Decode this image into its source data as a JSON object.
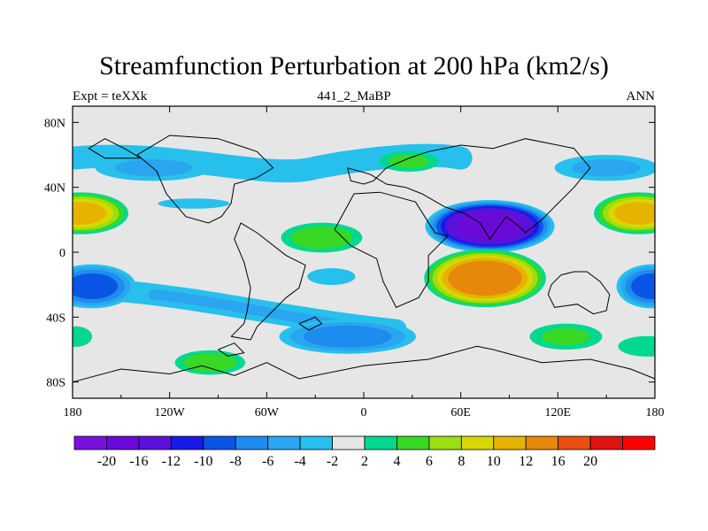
{
  "title": "Streamfunction Perturbation at 200 hPa (km2/s)",
  "left_string": "Expt = teXXk",
  "center_string": "441_2_MaBP",
  "right_string": "ANN",
  "chart_data": {
    "type": "heatmap",
    "variable": "Streamfunction Perturbation at 200 hPa",
    "units": "km2/s",
    "projection": "cylindrical equidistant",
    "lon_range": [
      -180,
      180
    ],
    "lat_range": [
      -90,
      90
    ],
    "x_ticks": [
      {
        "lon": -180,
        "label": "180"
      },
      {
        "lon": -120,
        "label": "120W"
      },
      {
        "lon": -60,
        "label": "60W"
      },
      {
        "lon": 0,
        "label": "0"
      },
      {
        "lon": 60,
        "label": "60E"
      },
      {
        "lon": 120,
        "label": "120E"
      },
      {
        "lon": 180,
        "label": "180"
      }
    ],
    "y_ticks": [
      {
        "lat": 80,
        "label": "80N"
      },
      {
        "lat": 40,
        "label": "40N"
      },
      {
        "lat": 0,
        "label": "0"
      },
      {
        "lat": -40,
        "label": "40S"
      },
      {
        "lat": -80,
        "label": "80S"
      }
    ],
    "colorbar": {
      "colors": [
        "#7a10e0",
        "#6a0ad8",
        "#5a12d8",
        "#1a1ae8",
        "#0a55e6",
        "#1e8cef",
        "#2aa6f0",
        "#27c0ec",
        "#e6e6e6",
        "#00d890",
        "#38d824",
        "#9cde10",
        "#d8d800",
        "#e6b400",
        "#e6880a",
        "#e65012",
        "#e01410",
        "#ff0000"
      ],
      "labels": [
        "-20",
        "-16",
        "-12",
        "-10",
        "-8",
        "-6",
        "-4",
        "-2",
        "2",
        "4",
        "6",
        "8",
        "10",
        "12",
        "16",
        "20"
      ]
    },
    "anomalies": [
      {
        "lon": 78,
        "lat": 16,
        "rlon": 42,
        "rlat": 17,
        "peak": -19
      },
      {
        "lon": 75,
        "lat": -16,
        "rlon": 40,
        "rlat": 19,
        "peak": 16
      },
      {
        "lon": -175,
        "lat": 24,
        "rlon": 32,
        "rlat": 14,
        "peak": 12
      },
      {
        "lon": 170,
        "lat": 24,
        "rlon": 30,
        "rlat": 14,
        "peak": 12
      },
      {
        "lon": -168,
        "lat": -21,
        "rlon": 30,
        "rlat": 15,
        "peak": -10
      },
      {
        "lon": 178,
        "lat": -21,
        "rlon": 24,
        "rlat": 15,
        "peak": -10
      },
      {
        "lon": -10,
        "lat": -52,
        "rlon": 48,
        "rlat": 12,
        "peak": -8
      },
      {
        "lon": -130,
        "lat": 52,
        "rlon": 45,
        "rlat": 10,
        "peak": -5
      },
      {
        "lon": 150,
        "lat": 52,
        "rlon": 40,
        "rlat": 10,
        "peak": -5
      },
      {
        "lon": -26,
        "lat": 9,
        "rlon": 30,
        "rlat": 11,
        "peak": 6
      },
      {
        "lon": 28,
        "lat": 56,
        "rlon": 23,
        "rlat": 8,
        "peak": 5
      },
      {
        "lon": 125,
        "lat": -52,
        "rlon": 28,
        "rlat": 10,
        "peak": 5
      },
      {
        "lon": -95,
        "lat": -68,
        "rlon": 26,
        "rlat": 9,
        "peak": 6
      },
      {
        "lon": -20,
        "lat": -15,
        "rlon": 20,
        "rlat": 7,
        "peak": -4
      },
      {
        "lon": -105,
        "lat": 30,
        "rlon": 35,
        "rlat": 5,
        "peak": -3
      },
      {
        "lon": 175,
        "lat": -58,
        "rlon": 28,
        "rlat": 10,
        "peak": 3
      },
      {
        "lon": -178,
        "lat": -52,
        "rlon": 16,
        "rlat": 10,
        "peak": 3
      }
    ],
    "band": {
      "lon0": -150,
      "lon1": 20,
      "lat0": -24,
      "lat1": -48,
      "width": 13,
      "peak": -5
    }
  }
}
